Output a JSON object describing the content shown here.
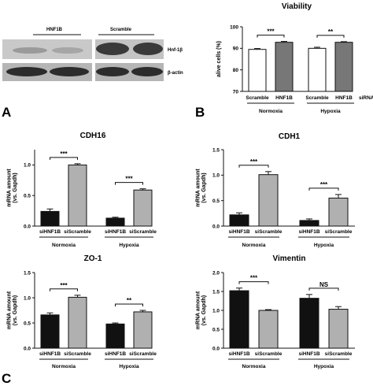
{
  "panels": {
    "a": "A",
    "b": "B",
    "c": "C"
  },
  "blot": {
    "label_left": "HNF1B",
    "label_right": "Scramble",
    "row1_label": "Hnf-1β",
    "row2_label": "β-actin"
  },
  "chart_data": [
    {
      "id": "viability",
      "type": "bar",
      "title": "Viability",
      "ylabel": "alive cells (%)",
      "ylim": [
        70,
        100
      ],
      "yticks": [
        70,
        80,
        90,
        100
      ],
      "xlabel": "siRNA",
      "categories": [
        "Scramble",
        "HNF1B",
        "Scramble",
        "HNF1B"
      ],
      "groups": [
        "Normoxia",
        "Hypoxia"
      ],
      "values": [
        89.5,
        92.8,
        90.0,
        92.8
      ],
      "errors": [
        0.4,
        0.4,
        0.5,
        0.3
      ],
      "colors": [
        "#ffffff",
        "#777777",
        "#ffffff",
        "#777777"
      ],
      "significance": [
        "***",
        "**"
      ]
    },
    {
      "id": "cdh16",
      "type": "bar",
      "title": "CDH16",
      "ylabel": "mRNA amount (vs. Gapdh)",
      "ylim": [
        0,
        1.25
      ],
      "yticks": [
        "0.0",
        "0.5",
        "1.0"
      ],
      "categories": [
        "siHNF1B",
        "siScramble",
        "siHNF1B",
        "siScramble"
      ],
      "groups": [
        "Normoxia",
        "Hypoxia"
      ],
      "values": [
        0.24,
        1.0,
        0.13,
        0.59
      ],
      "errors": [
        0.04,
        0.02,
        0.015,
        0.02
      ],
      "colors": [
        "#111111",
        "#b0b0b0",
        "#111111",
        "#b0b0b0"
      ],
      "significance": [
        "***",
        "***"
      ]
    },
    {
      "id": "cdh1",
      "type": "bar",
      "title": "CDH1",
      "ylabel": "mRNA amount (vs. Gapdh)",
      "ylim": [
        0,
        1.5
      ],
      "yticks": [
        "0.0",
        "0.5",
        "1.0",
        "1.5"
      ],
      "categories": [
        "siHNF1B",
        "siScramble",
        "siHNF1B",
        "siScramble"
      ],
      "groups": [
        "Normoxia",
        "Hypoxia"
      ],
      "values": [
        0.22,
        1.01,
        0.11,
        0.55
      ],
      "errors": [
        0.04,
        0.06,
        0.03,
        0.07
      ],
      "colors": [
        "#111111",
        "#b0b0b0",
        "#111111",
        "#b0b0b0"
      ],
      "significance": [
        "***",
        "***"
      ]
    },
    {
      "id": "zo1",
      "type": "bar",
      "title": "ZO-1",
      "ylabel": "mRNA amount (vs. Gapdh)",
      "ylim": [
        0,
        1.5
      ],
      "yticks": [
        "0.0",
        "0.5",
        "1.0",
        "1.5"
      ],
      "categories": [
        "siHNF1B",
        "siScramble",
        "siHNF1B",
        "siScramble"
      ],
      "groups": [
        "Normoxia",
        "Hypoxia"
      ],
      "values": [
        0.66,
        1.01,
        0.48,
        0.72
      ],
      "errors": [
        0.04,
        0.04,
        0.02,
        0.03
      ],
      "colors": [
        "#111111",
        "#b0b0b0",
        "#111111",
        "#b0b0b0"
      ],
      "significance": [
        "***",
        "**"
      ]
    },
    {
      "id": "vimentin",
      "type": "bar",
      "title": "Vimentin",
      "ylabel": "mRNA amount (vs. Gapdh)",
      "ylim": [
        0,
        2.0
      ],
      "yticks": [
        "0.0",
        "0.5",
        "1.0",
        "1.5",
        "2.0"
      ],
      "categories": [
        "siHNF1B",
        "siScramble",
        "siHNF1B",
        "siScramble"
      ],
      "groups": [
        "Normoxia",
        "Hypoxia"
      ],
      "values": [
        1.52,
        1.0,
        1.32,
        1.03
      ],
      "errors": [
        0.07,
        0.02,
        0.1,
        0.07
      ],
      "colors": [
        "#111111",
        "#b0b0b0",
        "#111111",
        "#b0b0b0"
      ],
      "significance": [
        "***",
        "NS"
      ]
    }
  ]
}
